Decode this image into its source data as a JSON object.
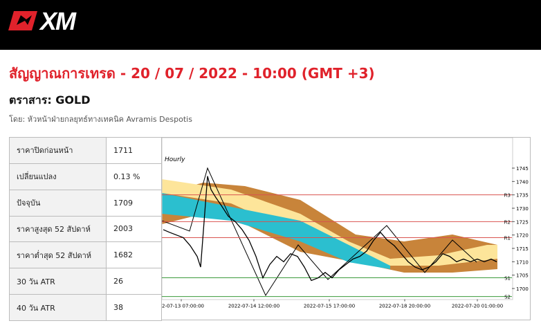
{
  "header": {
    "logo": "XM"
  },
  "title": "สัญญาณการเทรด - 20 / 07 / 2022 - 10:00 (GMT +3)",
  "instrument": "ตราสาร: GOLD",
  "author": "โดย: หัวหน้าฝ่ายกลยุทธ์ทางเทคนิค Avramis Despotis",
  "table": {
    "rows": [
      [
        "ราคาปิดก่อนหน้า",
        "1711"
      ],
      [
        "เปลี่ยนแปลง",
        "0.13 %"
      ],
      [
        "ปัจจุบัน",
        "1709"
      ],
      [
        "ราคาสูงสุด 52 สัปดาห์",
        "2003"
      ],
      [
        "ราคาต่ำสุด 52 สัปดาห์",
        "1682"
      ],
      [
        "30 วัน ATR",
        "26"
      ],
      [
        "40 วัน ATR",
        "38"
      ]
    ]
  },
  "chart_data": {
    "type": "line",
    "label": "Hourly",
    "color": "#000000",
    "x": [
      2,
      11,
      21,
      31,
      41,
      51,
      56,
      61,
      66,
      71,
      78,
      86,
      96,
      106,
      116,
      126,
      136,
      146,
      156,
      166,
      176,
      186,
      196,
      206,
      216,
      226,
      236,
      246,
      256,
      266,
      276,
      286,
      296,
      306,
      316,
      326,
      336,
      346,
      356,
      366,
      376,
      386,
      396,
      406,
      416,
      426,
      436,
      446,
      456,
      466,
      476,
      484
    ],
    "values": [
      1722,
      1721,
      1720,
      1719,
      1716,
      1712,
      1708,
      1725,
      1742,
      1737,
      1734,
      1731,
      1727,
      1725,
      1722,
      1718,
      1712,
      1704,
      1709,
      1712,
      1710,
      1713,
      1712,
      1708,
      1703,
      1704,
      1706,
      1704,
      1707,
      1709,
      1711,
      1712,
      1714,
      1718,
      1721,
      1718,
      1716,
      1713,
      1710,
      1708,
      1707,
      1708,
      1710,
      1713,
      1712,
      1710,
      1711,
      1710,
      1711,
      1710,
      1711,
      1710
    ],
    "xlim": [
      0,
      506
    ],
    "ylim": [
      1696,
      1751
    ],
    "yticks": [
      1700,
      1705,
      1710,
      1715,
      1720,
      1725,
      1730,
      1735,
      1740,
      1745
    ],
    "xticks": [
      {
        "value": 28,
        "label": "2-07-13 07:00:00"
      },
      {
        "value": 133,
        "label": "2022-07-14 12:00:00"
      },
      {
        "value": 242,
        "label": "2022-07-15 17:00:00"
      },
      {
        "value": 351,
        "label": "2022-07-18 20:00:00"
      },
      {
        "value": 456,
        "label": "2022-07-20 01:00:00"
      }
    ],
    "levels": [
      {
        "name": "R3",
        "value": 1735,
        "color": "#d9534f"
      },
      {
        "name": "R2",
        "value": 1725,
        "color": "#d9534f"
      },
      {
        "name": "R1",
        "value": 1719,
        "color": "#d9534f"
      },
      {
        "name": "S1",
        "value": 1704,
        "color": "#3a9a3a"
      },
      {
        "name": "S2",
        "value": 1697,
        "color": "#3a9a3a"
      }
    ]
  }
}
